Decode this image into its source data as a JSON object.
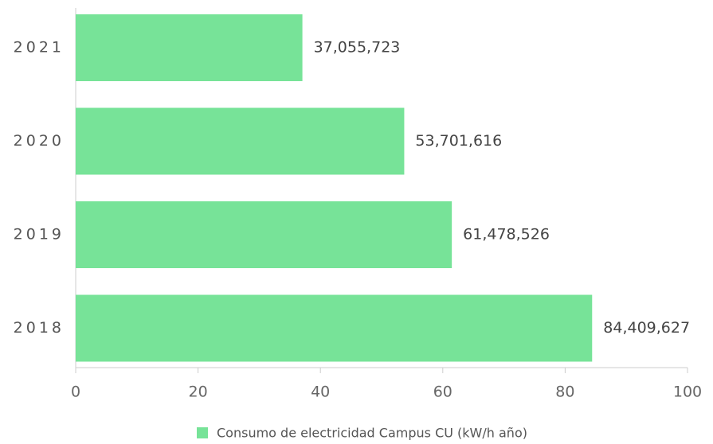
{
  "chart_data": {
    "type": "barh",
    "categories": [
      "2021",
      "2020",
      "2019",
      "2018"
    ],
    "series": [
      {
        "name": "Consumo de electricidad Campus CU (kW/h año)",
        "color": "#77e398",
        "values": [
          37.055723,
          53.701616,
          61.478526,
          84.409627
        ],
        "value_labels": [
          "37,055,723",
          "53,701,616",
          "61,478,526",
          "84,409,627"
        ]
      }
    ],
    "xlim": [
      0,
      100
    ],
    "xticks": [
      0,
      20,
      40,
      60,
      80,
      100
    ],
    "legend": "bottom"
  }
}
